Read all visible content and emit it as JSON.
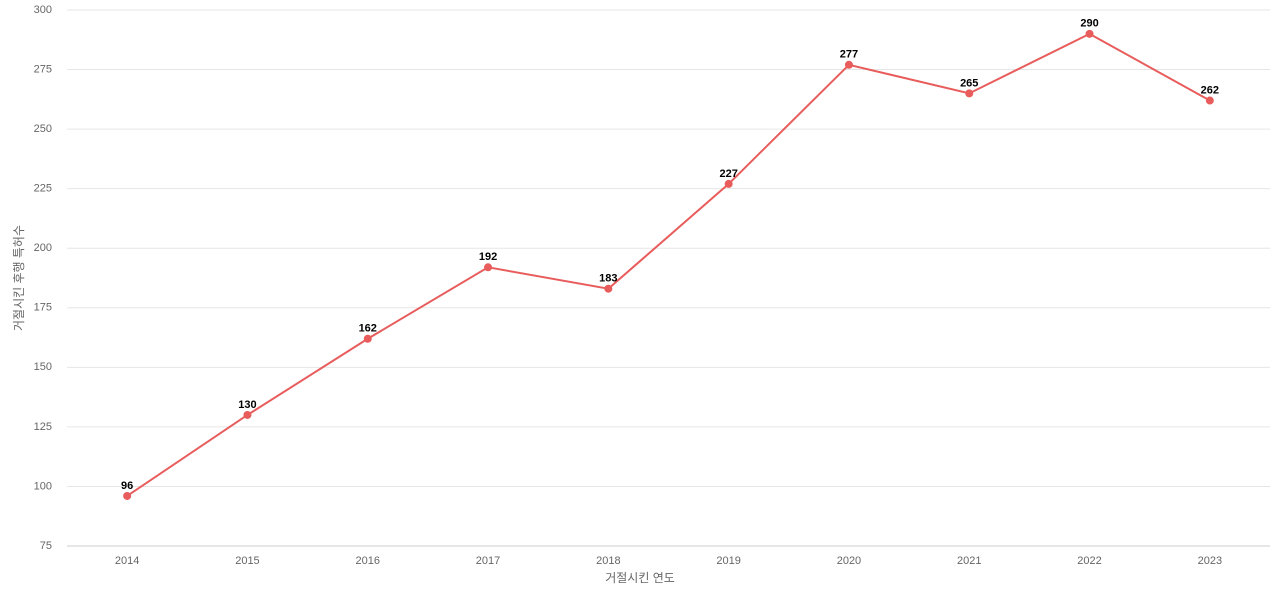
{
  "chart_data": {
    "type": "line",
    "x_label": "거절시킨 연도",
    "y_label": "거절시킨 후행 특허수",
    "categories": [
      "2014",
      "2015",
      "2016",
      "2017",
      "2018",
      "2019",
      "2020",
      "2021",
      "2022",
      "2023"
    ],
    "series": [
      {
        "name": "거절시킨 후행 특허수",
        "color": "#e85c5c",
        "values": [
          96,
          130,
          162,
          192,
          183,
          227,
          277,
          265,
          290,
          262
        ]
      }
    ],
    "ylim": [
      75,
      300
    ],
    "yticks": [
      75,
      100,
      125,
      150,
      175,
      200,
      225,
      250,
      275,
      300
    ],
    "grid": true
  }
}
